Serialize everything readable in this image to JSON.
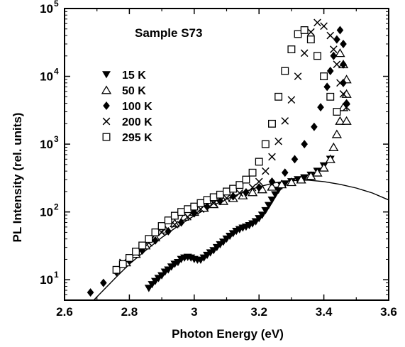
{
  "chart_data": {
    "type": "scatter",
    "annotation": "Sample S73",
    "xlabel": "Photon Energy (eV)",
    "ylabel": "PL Intensity (rel. units)",
    "xlim": [
      2.6,
      3.6
    ],
    "ylim": [
      5,
      100000
    ],
    "y_scale": "log",
    "x_ticks": [
      "2.6",
      "2.8",
      "3",
      "3.2",
      "3.4",
      "3.6"
    ],
    "y_tick_values": [
      10,
      100,
      1000,
      10000,
      100000
    ],
    "y_tick_mantissa": [
      "10",
      "10",
      "10",
      "10",
      "10"
    ],
    "y_tick_exponents": [
      "1",
      "2",
      "3",
      "4",
      "5"
    ],
    "legend_placement": "upper-left",
    "series": [
      {
        "name": "15 K",
        "marker": "triangle-down-filled",
        "points": [
          [
            2.86,
            7.5
          ],
          [
            2.87,
            8.5
          ],
          [
            2.88,
            9.5
          ],
          [
            2.89,
            10.5
          ],
          [
            2.9,
            11.5
          ],
          [
            2.91,
            13
          ],
          [
            2.92,
            14
          ],
          [
            2.93,
            15.5
          ],
          [
            2.94,
            17
          ],
          [
            2.95,
            18
          ],
          [
            2.96,
            20
          ],
          [
            2.97,
            21
          ],
          [
            2.98,
            21.5
          ],
          [
            2.99,
            21
          ],
          [
            3.0,
            20
          ],
          [
            3.01,
            19.5
          ],
          [
            3.02,
            19.5
          ],
          [
            3.03,
            21
          ],
          [
            3.04,
            23
          ],
          [
            3.05,
            25
          ],
          [
            3.06,
            27
          ],
          [
            3.07,
            30
          ],
          [
            3.08,
            33
          ],
          [
            3.09,
            36
          ],
          [
            3.1,
            40
          ],
          [
            3.11,
            44
          ],
          [
            3.12,
            48
          ],
          [
            3.13,
            52
          ],
          [
            3.14,
            55
          ],
          [
            3.15,
            58
          ],
          [
            3.16,
            60
          ],
          [
            3.17,
            63
          ],
          [
            3.18,
            67
          ],
          [
            3.19,
            72
          ],
          [
            3.2,
            80
          ],
          [
            3.21,
            90
          ],
          [
            3.22,
            105
          ],
          [
            3.23,
            125
          ],
          [
            3.24,
            150
          ],
          [
            3.25,
            180
          ],
          [
            3.26,
            210
          ],
          [
            3.27,
            240
          ],
          [
            3.28,
            260
          ],
          [
            3.3,
            280
          ],
          [
            3.32,
            300
          ],
          [
            3.34,
            320
          ],
          [
            3.36,
            350
          ],
          [
            3.38,
            400
          ],
          [
            3.4,
            480
          ],
          [
            3.42,
            600
          ]
        ]
      },
      {
        "name": "50 K",
        "marker": "triangle-up-open",
        "points": [
          [
            2.79,
            18
          ],
          [
            2.82,
            24
          ],
          [
            2.85,
            32
          ],
          [
            2.88,
            42
          ],
          [
            2.91,
            55
          ],
          [
            2.94,
            68
          ],
          [
            2.97,
            85
          ],
          [
            3.0,
            100
          ],
          [
            3.03,
            115
          ],
          [
            3.06,
            130
          ],
          [
            3.09,
            145
          ],
          [
            3.12,
            160
          ],
          [
            3.15,
            175
          ],
          [
            3.18,
            195
          ],
          [
            3.21,
            215
          ],
          [
            3.24,
            235
          ],
          [
            3.27,
            255
          ],
          [
            3.3,
            275
          ],
          [
            3.33,
            300
          ],
          [
            3.36,
            340
          ],
          [
            3.38,
            380
          ],
          [
            3.4,
            450
          ],
          [
            3.42,
            600
          ],
          [
            3.43,
            900
          ],
          [
            3.44,
            1400
          ],
          [
            3.45,
            2200
          ],
          [
            3.46,
            3500
          ],
          [
            3.47,
            5500
          ],
          [
            3.47,
            9000
          ],
          [
            3.46,
            15000
          ],
          [
            3.45,
            22000
          ],
          [
            3.47,
            2200
          ]
        ]
      },
      {
        "name": "100 K",
        "marker": "diamond-filled",
        "points": [
          [
            2.68,
            6.5
          ],
          [
            2.72,
            9
          ],
          [
            2.76,
            13
          ],
          [
            2.8,
            19
          ],
          [
            2.84,
            27
          ],
          [
            2.88,
            38
          ],
          [
            2.92,
            52
          ],
          [
            2.96,
            70
          ],
          [
            3.0,
            95
          ],
          [
            3.04,
            120
          ],
          [
            3.08,
            145
          ],
          [
            3.12,
            170
          ],
          [
            3.16,
            195
          ],
          [
            3.2,
            230
          ],
          [
            3.24,
            280
          ],
          [
            3.28,
            380
          ],
          [
            3.31,
            600
          ],
          [
            3.34,
            1000
          ],
          [
            3.37,
            1800
          ],
          [
            3.39,
            3500
          ],
          [
            3.41,
            7000
          ],
          [
            3.42,
            12000
          ],
          [
            3.43,
            20000
          ],
          [
            3.44,
            35000
          ],
          [
            3.45,
            48000
          ],
          [
            3.46,
            30000
          ],
          [
            3.46,
            15000
          ],
          [
            3.46,
            8000
          ],
          [
            3.47,
            4000
          ]
        ]
      },
      {
        "name": "200 K",
        "marker": "cross",
        "points": [
          [
            2.78,
            18
          ],
          [
            2.82,
            25
          ],
          [
            2.86,
            35
          ],
          [
            2.9,
            50
          ],
          [
            2.94,
            65
          ],
          [
            2.98,
            85
          ],
          [
            3.02,
            110
          ],
          [
            3.06,
            135
          ],
          [
            3.1,
            160
          ],
          [
            3.14,
            190
          ],
          [
            3.18,
            230
          ],
          [
            3.2,
            280
          ],
          [
            3.22,
            400
          ],
          [
            3.24,
            650
          ],
          [
            3.26,
            1100
          ],
          [
            3.28,
            2200
          ],
          [
            3.3,
            4500
          ],
          [
            3.32,
            10000
          ],
          [
            3.34,
            22000
          ],
          [
            3.36,
            45000
          ],
          [
            3.38,
            62000
          ],
          [
            3.4,
            55000
          ],
          [
            3.42,
            40000
          ],
          [
            3.43,
            25000
          ],
          [
            3.44,
            15000
          ],
          [
            3.45,
            8000
          ],
          [
            3.46,
            5500
          ],
          [
            3.47,
            3500
          ]
        ]
      },
      {
        "name": "295 K",
        "marker": "square-open",
        "points": [
          [
            2.76,
            14
          ],
          [
            2.78,
            17
          ],
          [
            2.8,
            21
          ],
          [
            2.82,
            26
          ],
          [
            2.84,
            32
          ],
          [
            2.86,
            40
          ],
          [
            2.88,
            50
          ],
          [
            2.9,
            62
          ],
          [
            2.92,
            75
          ],
          [
            2.94,
            88
          ],
          [
            2.96,
            100
          ],
          [
            2.98,
            110
          ],
          [
            3.0,
            120
          ],
          [
            3.02,
            135
          ],
          [
            3.04,
            150
          ],
          [
            3.06,
            165
          ],
          [
            3.08,
            180
          ],
          [
            3.1,
            200
          ],
          [
            3.12,
            220
          ],
          [
            3.14,
            250
          ],
          [
            3.16,
            300
          ],
          [
            3.18,
            380
          ],
          [
            3.2,
            550
          ],
          [
            3.22,
            1000
          ],
          [
            3.24,
            2000
          ],
          [
            3.26,
            5000
          ],
          [
            3.28,
            12000
          ],
          [
            3.3,
            25000
          ],
          [
            3.32,
            42000
          ],
          [
            3.34,
            48000
          ],
          [
            3.36,
            35000
          ],
          [
            3.38,
            20000
          ],
          [
            3.4,
            10000
          ],
          [
            3.42,
            5000
          ],
          [
            3.44,
            3000
          ]
        ]
      }
    ],
    "fit_curve": {
      "style": "solid-line",
      "points": [
        [
          2.69,
          5
        ],
        [
          2.72,
          7
        ],
        [
          2.76,
          11
        ],
        [
          2.8,
          17
        ],
        [
          2.85,
          27
        ],
        [
          2.9,
          42
        ],
        [
          2.95,
          62
        ],
        [
          3.0,
          88
        ],
        [
          3.05,
          120
        ],
        [
          3.1,
          155
        ],
        [
          3.15,
          195
        ],
        [
          3.2,
          235
        ],
        [
          3.25,
          270
        ],
        [
          3.3,
          290
        ],
        [
          3.35,
          295
        ],
        [
          3.4,
          280
        ],
        [
          3.45,
          255
        ],
        [
          3.5,
          225
        ],
        [
          3.55,
          190
        ],
        [
          3.6,
          150
        ]
      ]
    }
  }
}
